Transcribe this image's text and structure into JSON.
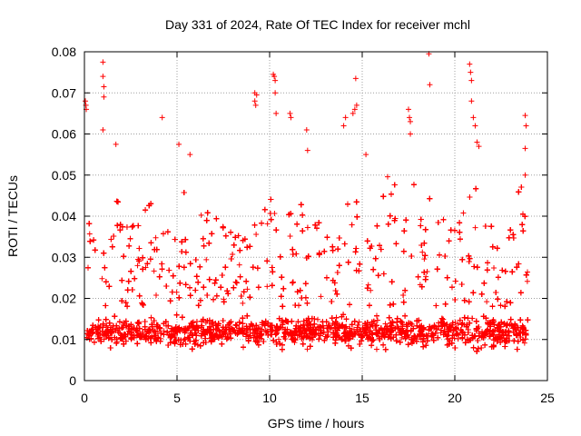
{
  "chart_data": {
    "type": "scatter",
    "title": "Day 331 of 2024, Rate Of TEC Index for receiver mchl",
    "xlabel": "GPS time / hours",
    "ylabel": "ROTI / TECUs",
    "xlim": [
      0,
      25
    ],
    "ylim": [
      0,
      0.08
    ],
    "x_ticks": [
      0,
      5,
      10,
      15,
      20,
      25
    ],
    "x_tick_labels": [
      "0",
      "5",
      "10",
      "15",
      "20",
      "25"
    ],
    "y_ticks": [
      0,
      0.01,
      0.02,
      0.03,
      0.04,
      0.05,
      0.06,
      0.07,
      0.08
    ],
    "y_tick_labels": [
      "0",
      "0.01",
      "0.02",
      "0.03",
      "0.04",
      "0.05",
      "0.06",
      "0.07",
      "0.08"
    ],
    "grid": true,
    "marker": "+",
    "series": [
      {
        "name": "ROTI",
        "color": "#ff0000",
        "points": [
          [
            0.05,
            0.068
          ],
          [
            0.08,
            0.067
          ],
          [
            0.1,
            0.066
          ],
          [
            1.0,
            0.0775
          ],
          [
            1.0,
            0.074
          ],
          [
            1.05,
            0.0715
          ],
          [
            1.05,
            0.069
          ],
          [
            1.0,
            0.061
          ],
          [
            1.7,
            0.0575
          ],
          [
            4.2,
            0.064
          ],
          [
            5.1,
            0.0575
          ],
          [
            5.7,
            0.055
          ],
          [
            9.2,
            0.07
          ],
          [
            9.3,
            0.0695
          ],
          [
            9.2,
            0.068
          ],
          [
            9.25,
            0.067
          ],
          [
            10.2,
            0.0745
          ],
          [
            10.25,
            0.074
          ],
          [
            10.3,
            0.073
          ],
          [
            10.3,
            0.07
          ],
          [
            10.35,
            0.065
          ],
          [
            11.1,
            0.065
          ],
          [
            11.15,
            0.064
          ],
          [
            12.0,
            0.061
          ],
          [
            12.05,
            0.056
          ],
          [
            14.0,
            0.062
          ],
          [
            14.1,
            0.064
          ],
          [
            14.5,
            0.065
          ],
          [
            14.6,
            0.066
          ],
          [
            14.65,
            0.0735
          ],
          [
            14.7,
            0.067
          ],
          [
            15.2,
            0.055
          ],
          [
            17.5,
            0.066
          ],
          [
            17.55,
            0.064
          ],
          [
            17.6,
            0.063
          ],
          [
            17.6,
            0.06
          ],
          [
            18.6,
            0.0795
          ],
          [
            18.65,
            0.072
          ],
          [
            20.8,
            0.077
          ],
          [
            20.85,
            0.075
          ],
          [
            20.9,
            0.073
          ],
          [
            20.9,
            0.068
          ],
          [
            21.0,
            0.064
          ],
          [
            21.1,
            0.062
          ],
          [
            21.2,
            0.058
          ],
          [
            21.3,
            0.057
          ],
          [
            23.8,
            0.0645
          ],
          [
            23.85,
            0.062
          ],
          [
            23.8,
            0.0565
          ],
          [
            23.8,
            0.05
          ]
        ]
      }
    ]
  }
}
